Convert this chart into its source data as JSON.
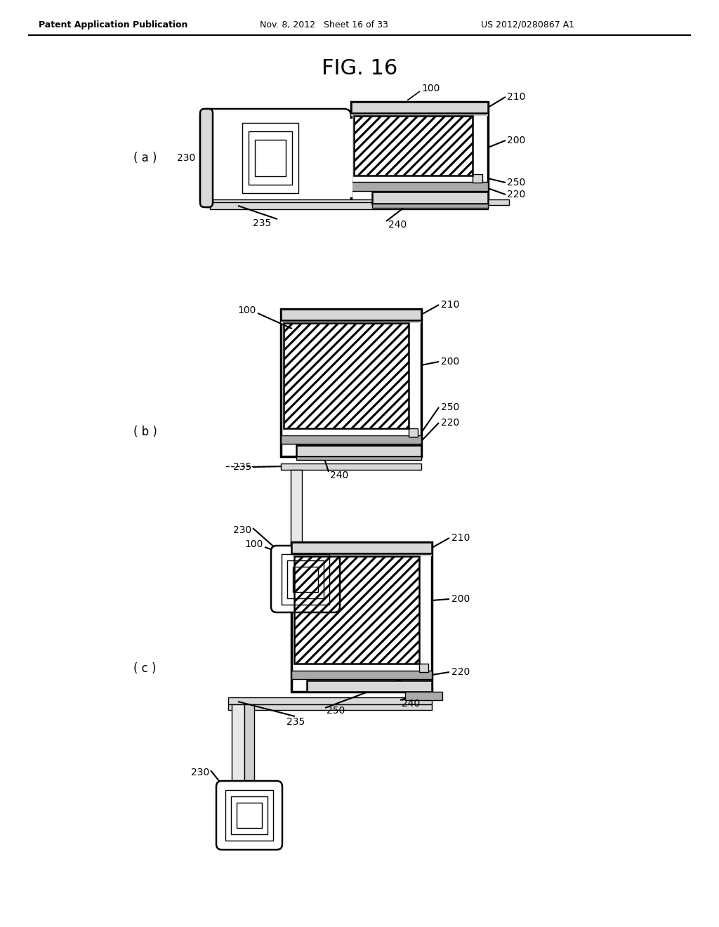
{
  "title": "FIG. 16",
  "header_left": "Patent Application Publication",
  "header_mid": "Nov. 8, 2012   Sheet 16 of 33",
  "header_right": "US 2012/0280867 A1",
  "bg_color": "#ffffff",
  "line_color": "#000000",
  "gray_light": "#d8d8d8",
  "gray_medium": "#aaaaaa",
  "gray_dark": "#888888"
}
